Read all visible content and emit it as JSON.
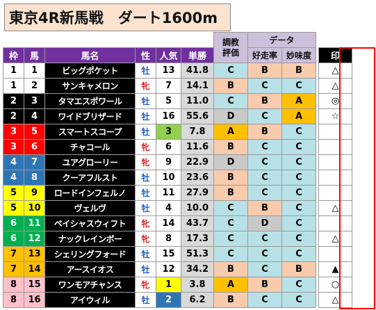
{
  "title": "東京4R新馬戦　ダート1600m",
  "headers": {
    "group_training": [
      "調教",
      "評価"
    ],
    "group_data": "データ",
    "waku": "枠",
    "uma": "馬",
    "name": "馬名",
    "sex": "性",
    "popularity": "人気",
    "odds": "単勝",
    "speed": "好走率",
    "myomi": "妙味度",
    "mark": "印"
  },
  "waku_colors": {
    "1": [
      "#ffffff",
      "#000000"
    ],
    "2": [
      "#000000",
      "#ffffff"
    ],
    "3": [
      "#ff0000",
      "#ffffff"
    ],
    "4": [
      "#2e75b6",
      "#ffffff"
    ],
    "5": [
      "#ffff00",
      "#000000"
    ],
    "6": [
      "#00b050",
      "#ffffff"
    ],
    "7": [
      "#ffc000",
      "#000000"
    ],
    "8": [
      "#ffc0cb",
      "#000000"
    ]
  },
  "rows": [
    {
      "waku": "1",
      "uma": "1",
      "name": "ビッグポケット",
      "sex": "牡",
      "pop": "13",
      "odds": "41.8",
      "eval": "C",
      "speed": "B",
      "myomi": "B",
      "mark": "△"
    },
    {
      "waku": "1",
      "uma": "2",
      "name": "サンキャメロン",
      "sex": "牝",
      "pop": "7",
      "odds": "14.1",
      "eval": "B",
      "speed": "C",
      "myomi": "C",
      "mark": "△"
    },
    {
      "waku": "2",
      "uma": "3",
      "name": "タマエスポワール",
      "sex": "牡",
      "pop": "5",
      "odds": "11.0",
      "eval": "C",
      "speed": "B",
      "myomi": "A",
      "mark": "◎"
    },
    {
      "waku": "2",
      "uma": "4",
      "name": "ワイドブリザード",
      "sex": "牡",
      "pop": "16",
      "odds": "55.6",
      "eval": "D",
      "speed": "C",
      "myomi": "A",
      "mark": "☆"
    },
    {
      "waku": "3",
      "uma": "5",
      "name": "スマートスコープ",
      "sex": "牡",
      "pop": "3",
      "odds": "7.8",
      "eval": "A",
      "speed": "B",
      "myomi": "C",
      "mark": ""
    },
    {
      "waku": "3",
      "uma": "6",
      "name": "チャコール",
      "sex": "牝",
      "pop": "6",
      "odds": "11.6",
      "eval": "B",
      "speed": "C",
      "myomi": "C",
      "mark": ""
    },
    {
      "waku": "4",
      "uma": "7",
      "name": "ユアグローリー",
      "sex": "牝",
      "pop": "9",
      "odds": "22.9",
      "eval": "D",
      "speed": "C",
      "myomi": "C",
      "mark": ""
    },
    {
      "waku": "4",
      "uma": "8",
      "name": "クーアフルスト",
      "sex": "牡",
      "pop": "10",
      "odds": "23.6",
      "eval": "B",
      "speed": "C",
      "myomi": "C",
      "mark": ""
    },
    {
      "waku": "5",
      "uma": "9",
      "name": "ロードインフェルノ",
      "sex": "牡",
      "pop": "11",
      "odds": "27.9",
      "eval": "B",
      "speed": "C",
      "myomi": "C",
      "mark": ""
    },
    {
      "waku": "5",
      "uma": "10",
      "name": "ヴェルヴ",
      "sex": "牡",
      "pop": "4",
      "odds": "10.0",
      "eval": "C",
      "speed": "B",
      "myomi": "C",
      "mark": "△"
    },
    {
      "waku": "6",
      "uma": "11",
      "name": "ペイシャスウィフト",
      "sex": "牝",
      "pop": "14",
      "odds": "43.7",
      "eval": "C",
      "speed": "D",
      "myomi": "C",
      "mark": ""
    },
    {
      "waku": "6",
      "uma": "12",
      "name": "ナックレインボー",
      "sex": "牝",
      "pop": "8",
      "odds": "17.3",
      "eval": "C",
      "speed": "C",
      "myomi": "C",
      "mark": "△"
    },
    {
      "waku": "7",
      "uma": "13",
      "name": "シェリングフォード",
      "sex": "牡",
      "pop": "15",
      "odds": "51.3",
      "eval": "C",
      "speed": "C",
      "myomi": "C",
      "mark": ""
    },
    {
      "waku": "7",
      "uma": "14",
      "name": "アースイオス",
      "sex": "牡",
      "pop": "12",
      "odds": "34.2",
      "eval": "B",
      "speed": "C",
      "myomi": "B",
      "mark": "▲"
    },
    {
      "waku": "8",
      "uma": "15",
      "name": "ワンモアチャンス",
      "sex": "牝",
      "pop": "1",
      "odds": "3.8",
      "eval": "A",
      "speed": "B",
      "myomi": "C",
      "mark": "○"
    },
    {
      "waku": "8",
      "uma": "16",
      "name": "アイウィル",
      "sex": "牡",
      "pop": "2",
      "odds": "6.2",
      "eval": "B",
      "speed": "C",
      "myomi": "C",
      "mark": "△"
    }
  ]
}
